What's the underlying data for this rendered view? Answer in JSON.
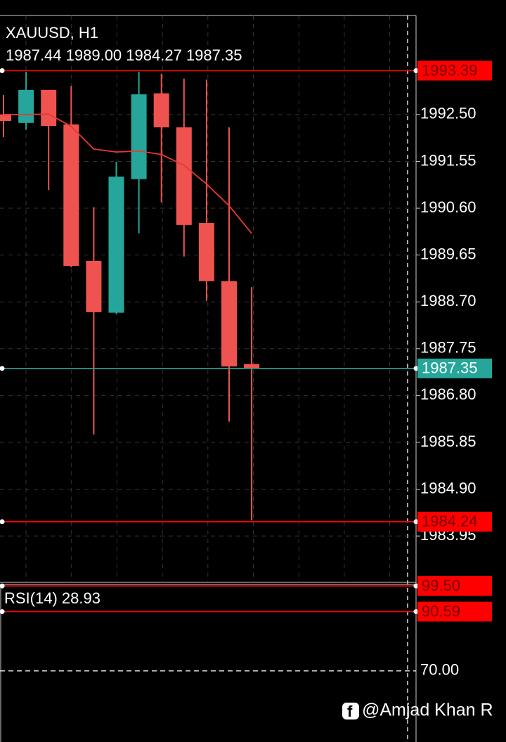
{
  "chart_data": [
    {
      "type": "candlestick",
      "title": "XAUUSD, H1",
      "subtitle": "1987.44 1989.00 1984.27 1987.35",
      "up_color": "#26a69a",
      "down_color": "#ef5350",
      "open": [
        1992.5,
        1992.33,
        1993.0,
        1992.3,
        1989.53,
        1988.48,
        1991.19,
        1992.93,
        1992.24,
        1990.3,
        1989.12,
        1987.44
      ],
      "high": [
        1992.9,
        1993.37,
        1993.0,
        1993.08,
        1990.62,
        1991.54,
        1993.37,
        1993.33,
        1993.23,
        1993.21,
        1992.24,
        1989.0
      ],
      "low": [
        1992.04,
        1992.19,
        1990.97,
        1989.4,
        1986.01,
        1988.45,
        1990.09,
        1990.72,
        1989.62,
        1988.72,
        1986.27,
        1984.27
      ],
      "close": [
        1992.37,
        1993.0,
        1992.27,
        1989.43,
        1988.49,
        1991.24,
        1992.91,
        1992.24,
        1990.26,
        1989.12,
        1987.39,
        1987.35
      ],
      "series": [
        {
          "color": "#e53935",
          "values": [
            1992.5,
            1992.5,
            1992.51,
            1992.26,
            1991.8,
            1991.74,
            1991.76,
            1991.69,
            1991.47,
            1991.09,
            1990.65,
            1990.09
          ]
        }
      ],
      "levels": [
        {
          "value": 1993.39,
          "color": "#ff0000"
        },
        {
          "value": 1984.24,
          "color": "#ff0000"
        },
        {
          "value": 1987.35,
          "color": "#26a69a"
        }
      ],
      "ylim": [
        1983.01,
        1994.51
      ],
      "yticks": [
        {
          "value": 1992.5,
          "label": "1992.50"
        },
        1991.55,
        {
          "value": 1990.6,
          "label": "1990.60"
        },
        1989.65,
        {
          "value": 1988.7,
          "label": "1988.70"
        },
        1987.75,
        {
          "value": 1986.8,
          "label": "1986.80"
        },
        1985.85,
        {
          "value": 1984.9,
          "label": "1984.90"
        },
        1983.95
      ],
      "grid": true
    },
    {
      "type": "rsi",
      "title": "RSI(14) 28.93",
      "levels": [
        {
          "value": 99.5,
          "label": "99.50",
          "color": "#ff0000"
        },
        {
          "value": 90.59,
          "color": "#ff0000"
        }
      ],
      "ylim": [
        45.3,
        100.5
      ],
      "yticks": [
        {
          "value": 70,
          "label": "70.00"
        }
      ]
    }
  ],
  "watermark": "@Amjad Khan R"
}
